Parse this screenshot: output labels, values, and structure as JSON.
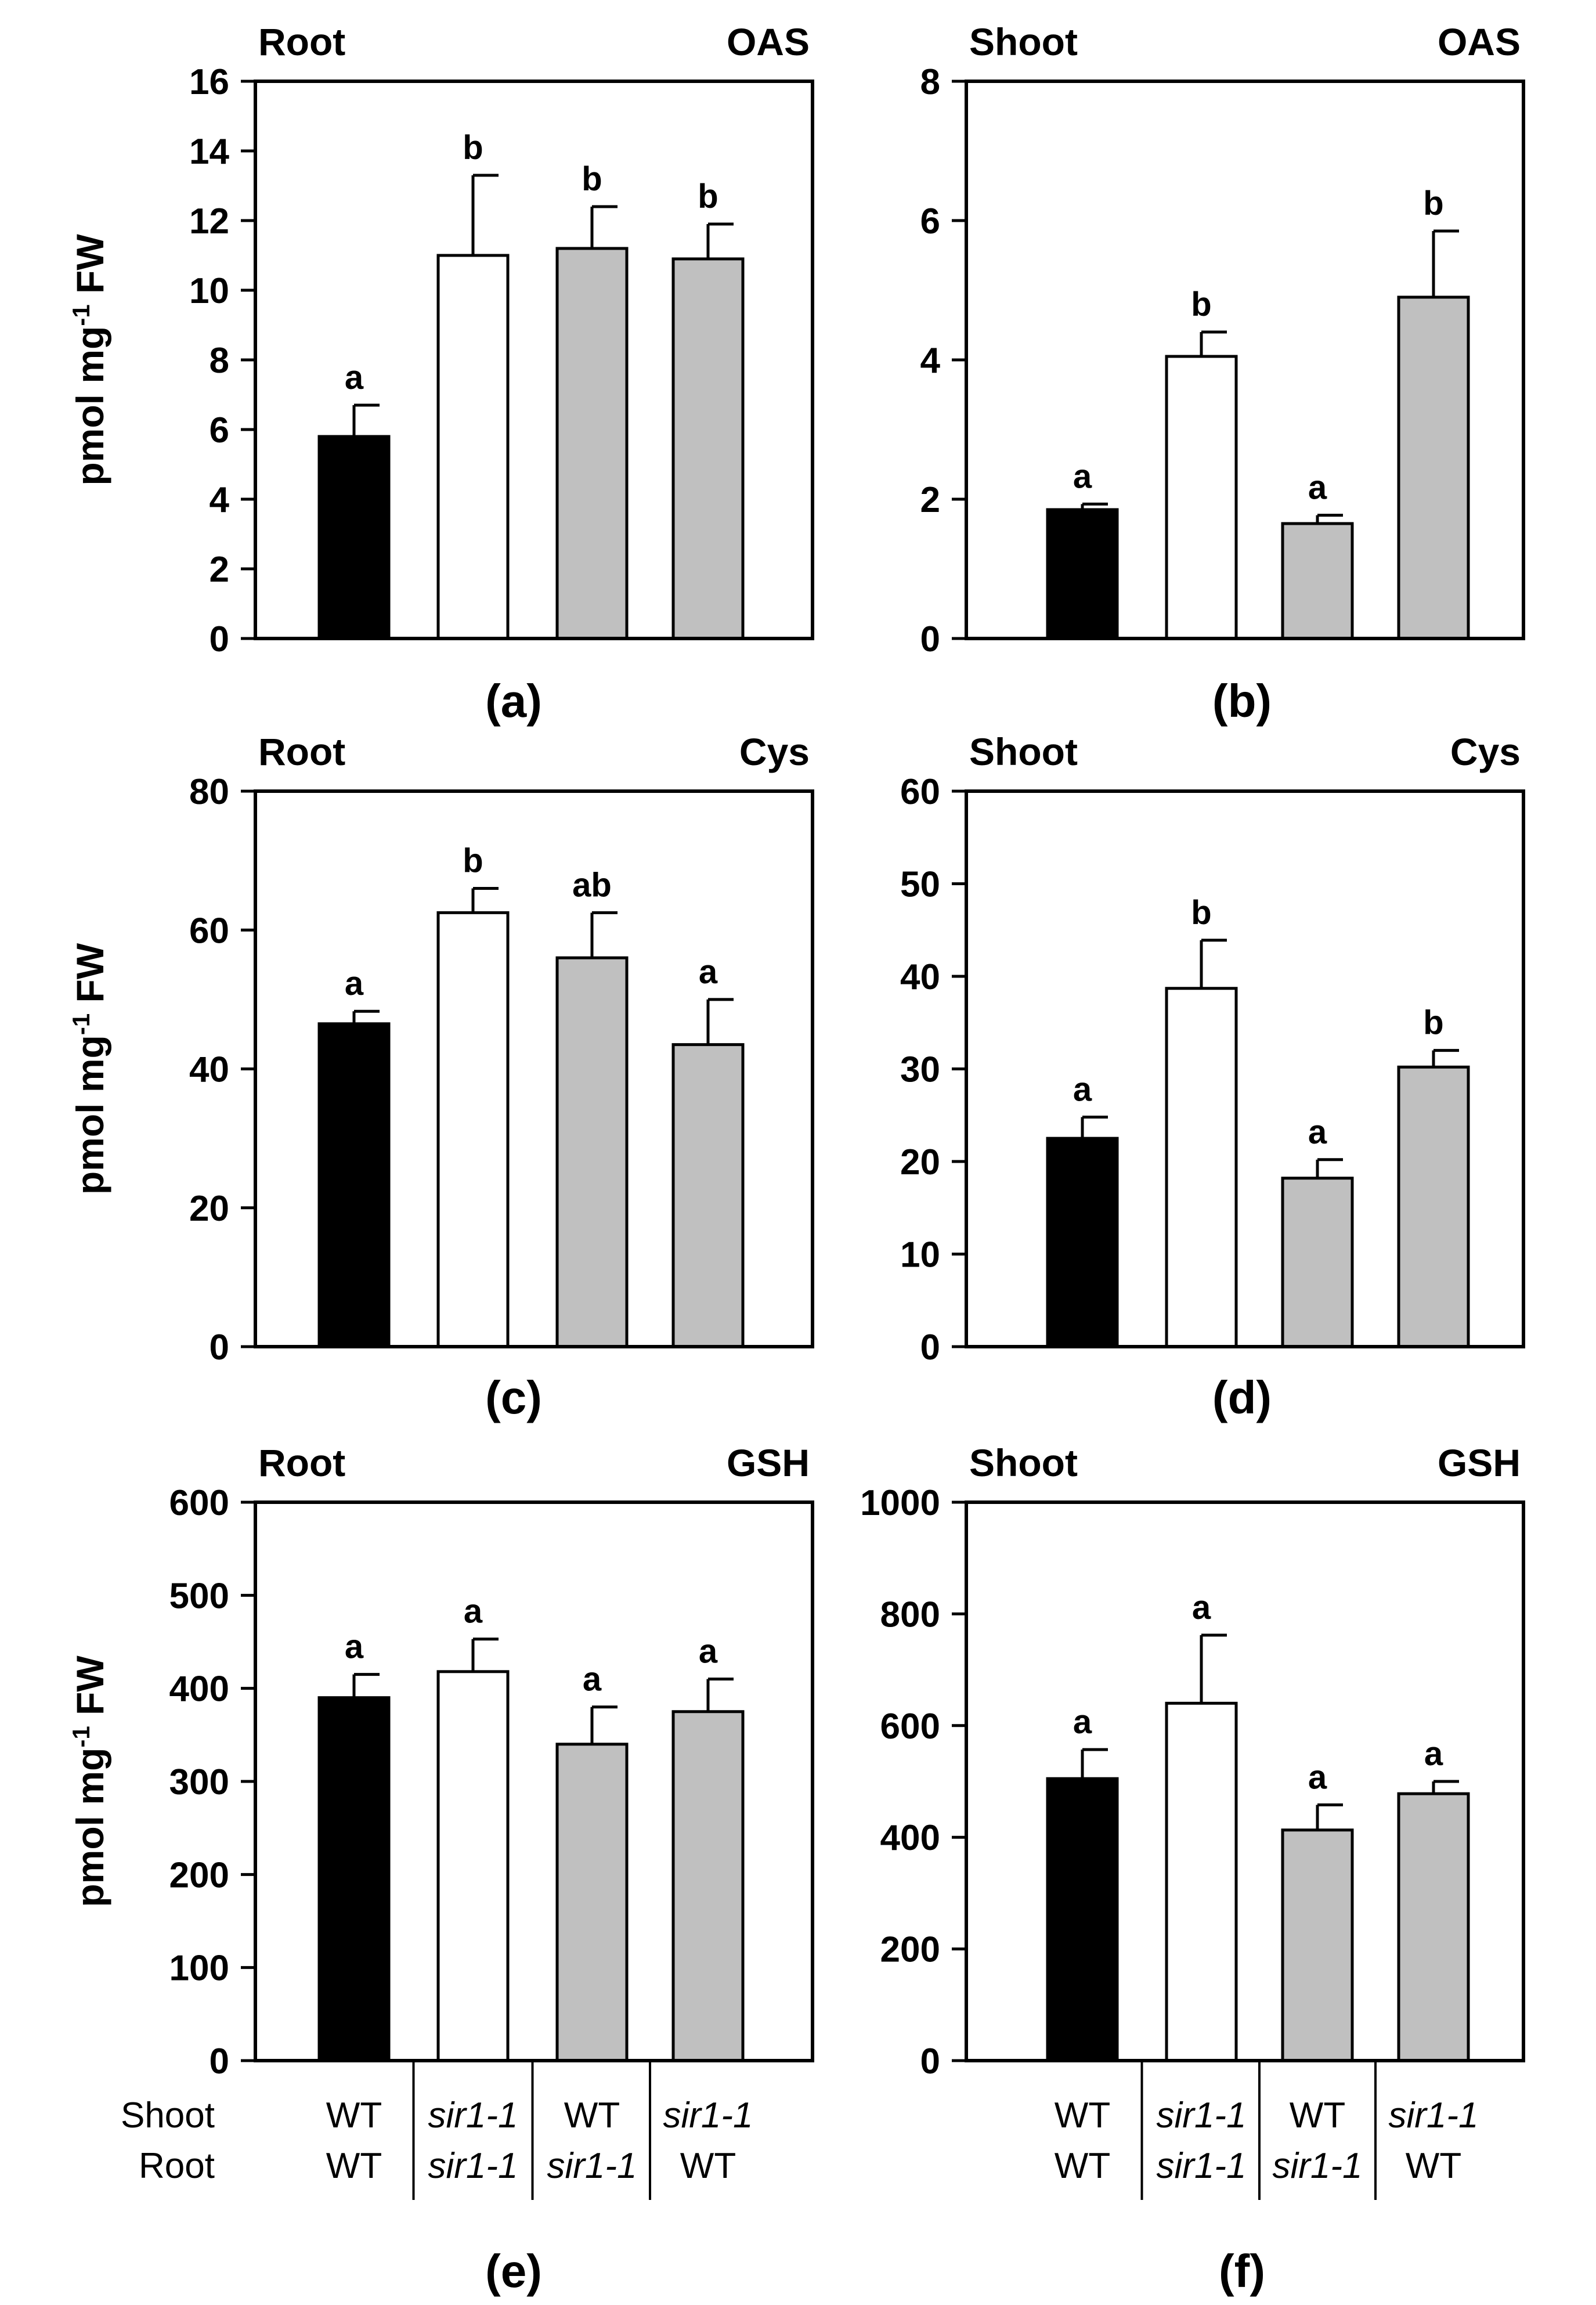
{
  "colors": {
    "black_bar": "#000000",
    "white_bar": "#ffffff",
    "gray_bar": "#c0c0c0",
    "axis": "#000000"
  },
  "ylabel_parts": {
    "before": "pmol mg",
    "sup": "-1",
    "after": " FW"
  },
  "genotype_rows": {
    "shoot_label": "Shoot",
    "root_label": "Root",
    "shoot": [
      "WT",
      "sir1-1",
      "WT",
      "sir1-1"
    ],
    "root": [
      "WT",
      "sir1-1",
      "sir1-1",
      "WT"
    ],
    "italic_token": "sir1-1"
  },
  "chart_data": [
    {
      "type": "bar",
      "panel": "(a)",
      "tissue": "Root",
      "metabolite": "OAS",
      "ylabel": "pmol mg-1 FW",
      "ylim": [
        0,
        16
      ],
      "yticks": [
        0,
        2,
        4,
        6,
        8,
        10,
        12,
        14,
        16
      ],
      "categories": [
        "WT/WT",
        "sir1-1/sir1-1",
        "WT/sir1-1",
        "sir1-1/WT"
      ],
      "values": [
        5.8,
        11.0,
        11.2,
        10.9
      ],
      "errors": [
        0.9,
        2.3,
        1.2,
        1.0
      ],
      "letters": [
        "a",
        "b",
        "b",
        "b"
      ],
      "bar_colors": [
        "black",
        "white",
        "gray",
        "gray"
      ]
    },
    {
      "type": "bar",
      "panel": "(b)",
      "tissue": "Shoot",
      "metabolite": "OAS",
      "ylabel": "",
      "ylim": [
        0,
        8
      ],
      "yticks": [
        0,
        2,
        4,
        6,
        8
      ],
      "categories": [
        "WT/WT",
        "sir1-1/sir1-1",
        "WT/sir1-1",
        "sir1-1/WT"
      ],
      "values": [
        1.85,
        4.05,
        1.65,
        4.9
      ],
      "errors": [
        0.08,
        0.35,
        0.12,
        0.95
      ],
      "letters": [
        "a",
        "b",
        "a",
        "b"
      ],
      "bar_colors": [
        "black",
        "white",
        "gray",
        "gray"
      ]
    },
    {
      "type": "bar",
      "panel": "(c)",
      "tissue": "Root",
      "metabolite": "Cys",
      "ylabel": "pmol mg-1 FW",
      "ylim": [
        0,
        80
      ],
      "yticks": [
        0,
        20,
        40,
        60,
        80
      ],
      "categories": [
        "WT/WT",
        "sir1-1/sir1-1",
        "WT/sir1-1",
        "sir1-1/WT"
      ],
      "values": [
        46.5,
        62.5,
        56,
        43.5
      ],
      "errors": [
        1.8,
        3.5,
        6.5,
        6.5
      ],
      "letters": [
        "a",
        "b",
        "ab",
        "a"
      ],
      "bar_colors": [
        "black",
        "white",
        "gray",
        "gray"
      ]
    },
    {
      "type": "bar",
      "panel": "(d)",
      "tissue": "Shoot",
      "metabolite": "Cys",
      "ylabel": "",
      "ylim": [
        0,
        60
      ],
      "yticks": [
        0,
        10,
        20,
        30,
        40,
        50,
        60
      ],
      "categories": [
        "WT/WT",
        "sir1-1/sir1-1",
        "WT/sir1-1",
        "sir1-1/WT"
      ],
      "values": [
        22.5,
        38.7,
        18.2,
        30.2
      ],
      "errors": [
        2.3,
        5.2,
        2.0,
        1.8
      ],
      "letters": [
        "a",
        "b",
        "a",
        "b"
      ],
      "bar_colors": [
        "black",
        "white",
        "gray",
        "gray"
      ]
    },
    {
      "type": "bar",
      "panel": "(e)",
      "tissue": "Root",
      "metabolite": "GSH",
      "ylabel": "pmol mg-1 FW",
      "ylim": [
        0,
        600
      ],
      "yticks": [
        0,
        100,
        200,
        300,
        400,
        500,
        600
      ],
      "categories": [
        "WT/WT",
        "sir1-1/sir1-1",
        "WT/sir1-1",
        "sir1-1/WT"
      ],
      "values": [
        390,
        418,
        340,
        375
      ],
      "errors": [
        25,
        35,
        40,
        35
      ],
      "letters": [
        "a",
        "a",
        "a",
        "a"
      ],
      "bar_colors": [
        "black",
        "white",
        "gray",
        "gray"
      ]
    },
    {
      "type": "bar",
      "panel": "(f)",
      "tissue": "Shoot",
      "metabolite": "GSH",
      "ylabel": "",
      "ylim": [
        0,
        1000
      ],
      "yticks": [
        0,
        200,
        400,
        600,
        800,
        1000
      ],
      "categories": [
        "WT/WT",
        "sir1-1/sir1-1",
        "WT/sir1-1",
        "sir1-1/WT"
      ],
      "values": [
        505,
        640,
        413,
        478
      ],
      "errors": [
        52,
        122,
        45,
        22
      ],
      "letters": [
        "a",
        "a",
        "a",
        "a"
      ],
      "bar_colors": [
        "black",
        "white",
        "gray",
        "gray"
      ]
    }
  ]
}
